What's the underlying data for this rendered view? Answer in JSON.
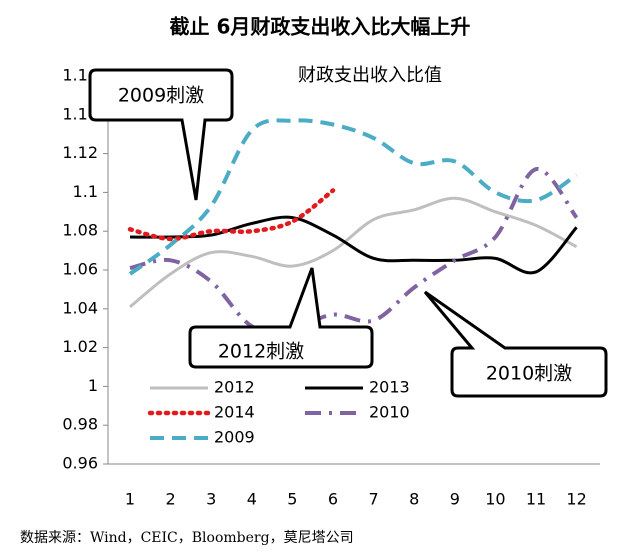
{
  "chart_data": {
    "type": "line",
    "title": "截止 6月财政支出收入比大幅上升",
    "subtitle": "财政支出收入比值",
    "source": "数据来源：Wind，CEIC，Bloomberg，莫尼塔公司",
    "annotations": [
      "2009刺激",
      "2012刺激",
      "2010刺激"
    ],
    "categories": [
      "1",
      "2",
      "3",
      "4",
      "5",
      "6",
      "7",
      "8",
      "9",
      "10",
      "11",
      "12"
    ],
    "ylim": [
      0.96,
      1.16
    ],
    "yticks": [
      0.96,
      0.98,
      1,
      1.02,
      1.04,
      1.06,
      1.08,
      1.1,
      1.12,
      1.14,
      1.16
    ],
    "grid": false,
    "series": [
      {
        "name": "2012",
        "color": "#bfbfbf",
        "dash": "solid",
        "values": [
          1.041,
          1.058,
          1.069,
          1.067,
          1.062,
          1.07,
          1.086,
          1.091,
          1.097,
          1.09,
          1.083,
          1.072
        ]
      },
      {
        "name": "2013",
        "color": "#000000",
        "dash": "solid",
        "values": [
          1.077,
          1.077,
          1.078,
          1.084,
          1.087,
          1.078,
          1.066,
          1.065,
          1.065,
          1.066,
          1.059,
          1.082
        ]
      },
      {
        "name": "2014",
        "color": "#e31a1c",
        "dash": "dot",
        "values": [
          1.081,
          1.076,
          1.08,
          1.08,
          1.085,
          1.101,
          null,
          null,
          null,
          null,
          null,
          null
        ]
      },
      {
        "name": "2010",
        "color": "#8064a2",
        "dash": "dashdot",
        "values": [
          1.061,
          1.065,
          1.054,
          1.031,
          1.03,
          1.037,
          1.034,
          1.051,
          1.065,
          1.077,
          1.112,
          1.087
        ]
      },
      {
        "name": "2009",
        "color": "#4bacc6",
        "dash": "dash",
        "values": [
          1.058,
          1.073,
          1.093,
          1.132,
          1.137,
          1.135,
          1.128,
          1.115,
          1.116,
          1.1,
          1.096,
          1.109
        ]
      }
    ]
  }
}
